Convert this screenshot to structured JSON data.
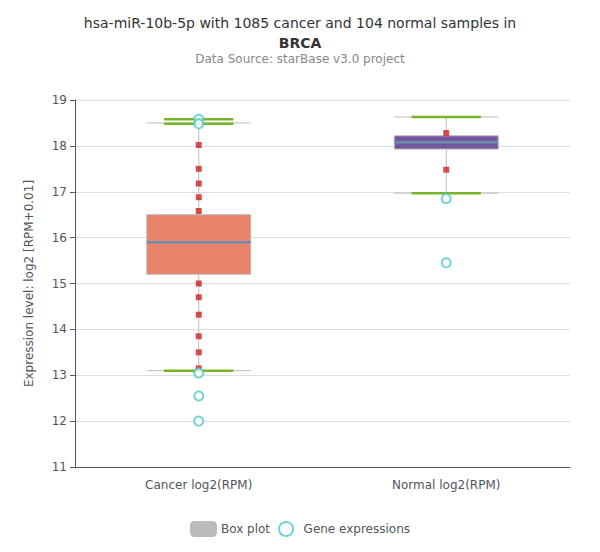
{
  "chart_data": {
    "type": "box",
    "title": [
      "hsa-miR-10b-5p with 1085 cancer and 104 normal samples in",
      "BRCA"
    ],
    "subtitle": "Data Source: starBase v3.0 project",
    "y_label": "Expression level: log2 [RPM+0.01]",
    "categories": [
      "Cancer log2(RPM)",
      "Normal log2(RPM)"
    ],
    "ylim": [
      11,
      19
    ],
    "yticks": [
      11,
      12,
      13,
      14,
      15,
      16,
      17,
      18,
      19
    ],
    "grid": true,
    "legend": "bottom",
    "series": [
      {
        "name": "Box plot",
        "type": "box",
        "color": "#c8c8c8",
        "colors": [
          "#E8826A",
          "#7455a0"
        ],
        "values": [
          [
            13.1,
            15.2,
            15.9,
            16.5,
            18.5
          ],
          [
            16.97,
            17.93,
            18.08,
            18.22,
            18.63
          ]
        ]
      },
      {
        "type": "median",
        "color": "#6a8fad",
        "values": [
          [
            15.9
          ],
          [
            18.08
          ]
        ]
      },
      {
        "type": "scatter",
        "marker": "rect",
        "color": "#cc2222",
        "values": [
          [
            18.02,
            17.5,
            17.18,
            16.88,
            16.58,
            15.0,
            14.7,
            14.32,
            13.85,
            13.5,
            13.15
          ],
          [
            18.28,
            17.48
          ]
        ]
      },
      {
        "type": "tick",
        "color": "#78b428",
        "values": [
          [
            18.58,
            18.48,
            13.1
          ],
          [
            18.63,
            16.97
          ]
        ]
      },
      {
        "name": "Gene expressions",
        "type": "scatter",
        "marker": "emptyCircle",
        "color": "#4dc8d0",
        "values": [
          [
            18.58,
            18.48,
            13.05,
            12.55,
            12.0
          ],
          [
            16.85,
            15.45
          ]
        ]
      }
    ]
  }
}
